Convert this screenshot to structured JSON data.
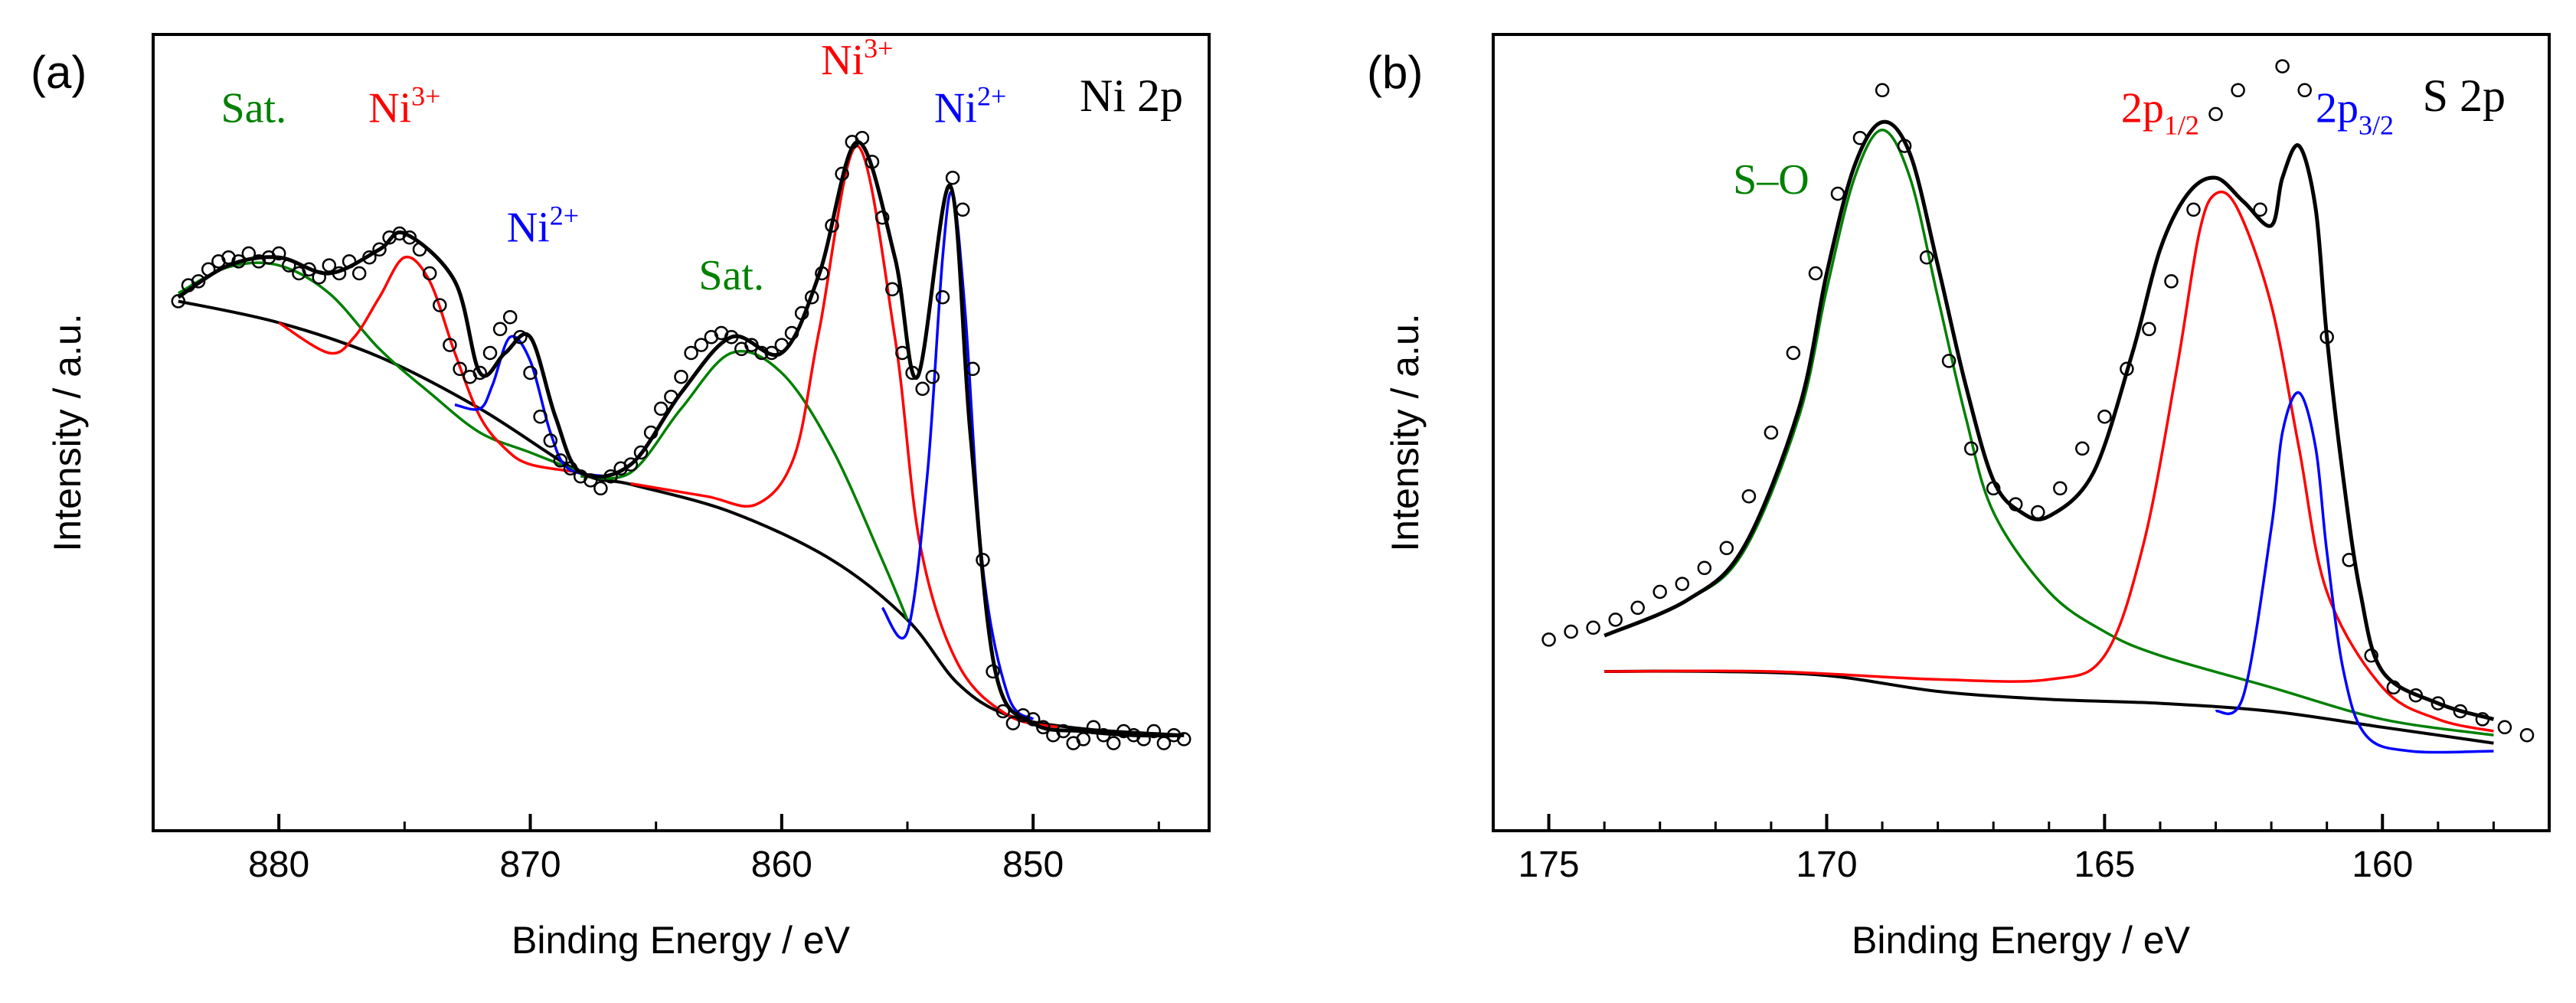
{
  "chart_data": [
    {
      "type": "line",
      "panel_label": "(a)",
      "title": "Ni 2p",
      "xlabel": "Binding Energy / eV",
      "ylabel": "Intensity / a.u.",
      "xlim": [
        885,
        843
      ],
      "ylim": [
        0.0,
        1.0
      ],
      "xticks": [
        "880",
        "870",
        "860",
        "850"
      ],
      "xtick_values": [
        880,
        870,
        860,
        850
      ],
      "colors": {
        "data": "#000000",
        "envelope": "#000000",
        "background": "#000000",
        "sat": "#008000",
        "ni3": "#ff0000",
        "ni2": "#0000ff"
      },
      "annotations": [
        {
          "name": "sat-label-1",
          "text": "Sat.",
          "color": "#008000",
          "x": 881,
          "y": 0.89
        },
        {
          "name": "ni3-label-1",
          "text": "Ni",
          "sup": "3+",
          "color": "#ff0000",
          "x": 875,
          "y": 0.89
        },
        {
          "name": "ni2-label-1",
          "text": "Ni",
          "sup": "2+",
          "color": "#0000ff",
          "x": 869.5,
          "y": 0.74
        },
        {
          "name": "sat-label-2",
          "text": "Sat.",
          "color": "#008000",
          "x": 862,
          "y": 0.68
        },
        {
          "name": "ni3-label-2",
          "text": "Ni",
          "sup": "3+",
          "color": "#ff0000",
          "x": 857,
          "y": 0.95
        },
        {
          "name": "ni2-label-2",
          "text": "Ni",
          "sup": "2+",
          "color": "#0000ff",
          "x": 852.5,
          "y": 0.89
        }
      ],
      "series": [
        {
          "name": "background",
          "role": "background",
          "color": "#000000",
          "x": [
            884,
            880,
            876,
            872,
            868,
            866,
            862,
            858,
            855,
            853,
            851,
            848,
            844
          ],
          "y": [
            0.665,
            0.638,
            0.595,
            0.53,
            0.45,
            0.435,
            0.4,
            0.34,
            0.265,
            0.185,
            0.145,
            0.128,
            0.12
          ]
        },
        {
          "name": "Sat. (880)",
          "role": "component",
          "color": "#008000",
          "x": [
            884,
            882,
            880,
            878,
            876,
            874,
            872,
            870,
            868
          ],
          "y": [
            0.675,
            0.708,
            0.71,
            0.675,
            0.605,
            0.55,
            0.5,
            0.475,
            0.45
          ]
        },
        {
          "name": "Ni3+ (875)",
          "role": "component",
          "color": "#ff0000",
          "x": [
            880,
            878,
            877,
            876,
            875,
            874,
            873,
            872,
            871,
            870,
            868
          ],
          "y": [
            0.638,
            0.6,
            0.62,
            0.67,
            0.72,
            0.69,
            0.6,
            0.52,
            0.48,
            0.46,
            0.45
          ]
        },
        {
          "name": "Ni2+ (871)",
          "role": "component",
          "color": "#0000ff",
          "x": [
            873,
            872,
            871.5,
            870.8,
            870,
            869.2,
            868.5,
            867
          ],
          "y": [
            0.535,
            0.53,
            0.56,
            0.62,
            0.59,
            0.5,
            0.455,
            0.445
          ]
        },
        {
          "name": "Sat. (862)",
          "role": "component",
          "color": "#008000",
          "x": [
            868,
            866,
            864,
            862,
            860,
            858,
            856,
            855
          ],
          "y": [
            0.445,
            0.45,
            0.53,
            0.6,
            0.575,
            0.48,
            0.34,
            0.265
          ]
        },
        {
          "name": "Ni3+ (857)",
          "role": "component",
          "color": "#ff0000",
          "x": [
            866,
            863,
            861,
            859.5,
            858.5,
            857,
            855.5,
            854.5,
            853,
            851,
            849
          ],
          "y": [
            0.436,
            0.42,
            0.41,
            0.47,
            0.63,
            0.86,
            0.62,
            0.36,
            0.21,
            0.145,
            0.13
          ]
        },
        {
          "name": "Ni2+ (853)",
          "role": "component",
          "color": "#0000ff",
          "x": [
            856,
            855,
            854.2,
            853.6,
            853.2,
            852.7,
            852,
            851,
            850
          ],
          "y": [
            0.28,
            0.25,
            0.45,
            0.72,
            0.8,
            0.65,
            0.33,
            0.17,
            0.14
          ]
        },
        {
          "name": "Envelope",
          "role": "envelope",
          "color": "#000000",
          "x": [
            884,
            882,
            880,
            878,
            876,
            875,
            873,
            872,
            871,
            870,
            869,
            868,
            866,
            864,
            862,
            860,
            858.5,
            857,
            855.5,
            854.6,
            853.3,
            852.5,
            851.5,
            850,
            848,
            846,
            844
          ],
          "y": [
            0.67,
            0.71,
            0.72,
            0.7,
            0.73,
            0.75,
            0.69,
            0.575,
            0.6,
            0.62,
            0.52,
            0.45,
            0.46,
            0.55,
            0.62,
            0.6,
            0.7,
            0.865,
            0.72,
            0.57,
            0.81,
            0.5,
            0.2,
            0.135,
            0.125,
            0.12,
            0.12
          ]
        },
        {
          "name": "Raw data",
          "role": "scatter",
          "color": "#000000",
          "x": [
            884,
            883.6,
            883.2,
            882.8,
            882.4,
            882,
            881.6,
            881.2,
            880.8,
            880.4,
            880,
            879.6,
            879.2,
            878.8,
            878.4,
            878,
            877.6,
            877.2,
            876.8,
            876.4,
            876,
            875.6,
            875.2,
            874.8,
            874.4,
            874,
            873.6,
            873.2,
            872.8,
            872.4,
            872,
            871.6,
            871.2,
            870.8,
            870.4,
            870,
            869.6,
            869.2,
            868.8,
            868.4,
            868,
            867.6,
            867.2,
            866.8,
            866.4,
            866,
            865.6,
            865.2,
            864.8,
            864.4,
            864,
            863.6,
            863.2,
            862.8,
            862.4,
            862,
            861.6,
            861.2,
            860.8,
            860.4,
            860,
            859.6,
            859.2,
            858.8,
            858.4,
            858,
            857.6,
            857.2,
            856.8,
            856.4,
            856,
            855.6,
            855.2,
            854.8,
            854.4,
            854,
            853.6,
            853.2,
            852.8,
            852.4,
            852,
            851.6,
            851.2,
            850.8,
            850.4,
            850,
            849.6,
            849.2,
            848.8,
            848.4,
            848,
            847.6,
            847.2,
            846.8,
            846.4,
            846,
            845.6,
            845.2,
            844.8,
            844.4,
            844
          ],
          "y": [
            0.665,
            0.685,
            0.69,
            0.705,
            0.715,
            0.72,
            0.715,
            0.725,
            0.715,
            0.72,
            0.725,
            0.71,
            0.7,
            0.705,
            0.695,
            0.71,
            0.7,
            0.715,
            0.7,
            0.72,
            0.73,
            0.745,
            0.75,
            0.745,
            0.73,
            0.7,
            0.66,
            0.61,
            0.58,
            0.57,
            0.575,
            0.6,
            0.63,
            0.645,
            0.62,
            0.575,
            0.52,
            0.49,
            0.465,
            0.455,
            0.445,
            0.44,
            0.43,
            0.445,
            0.455,
            0.46,
            0.475,
            0.5,
            0.53,
            0.545,
            0.57,
            0.6,
            0.61,
            0.62,
            0.625,
            0.62,
            0.605,
            0.61,
            0.6,
            0.6,
            0.61,
            0.625,
            0.65,
            0.67,
            0.7,
            0.76,
            0.825,
            0.865,
            0.87,
            0.84,
            0.77,
            0.68,
            0.6,
            0.575,
            0.555,
            0.57,
            0.67,
            0.82,
            0.78,
            0.58,
            0.34,
            0.2,
            0.15,
            0.135,
            0.145,
            0.14,
            0.13,
            0.12,
            0.125,
            0.11,
            0.115,
            0.13,
            0.12,
            0.11,
            0.125,
            0.12,
            0.115,
            0.125,
            0.11,
            0.12,
            0.115
          ]
        }
      ]
    },
    {
      "type": "line",
      "panel_label": "(b)",
      "title": "S 2p",
      "xlabel": "Binding Energy / eV",
      "ylabel": "Intensity / a.u.",
      "xlim": [
        176,
        157
      ],
      "ylim": [
        0.0,
        1.0
      ],
      "xticks": [
        "175",
        "170",
        "165",
        "160"
      ],
      "xtick_values": [
        175,
        170,
        165,
        160
      ],
      "colors": {
        "data": "#000000",
        "envelope": "#000000",
        "background": "#000000",
        "so": "#008000",
        "p12": "#ff0000",
        "p32": "#0000ff"
      },
      "annotations": [
        {
          "name": "so-label",
          "text": "S–O",
          "color": "#008000",
          "x": 171,
          "y": 0.8
        },
        {
          "name": "p12-label",
          "text": "2p",
          "sub": "1/2",
          "color": "#ff0000",
          "x": 164,
          "y": 0.89
        },
        {
          "name": "p32-label",
          "text": "2p",
          "sub": "3/2",
          "color": "#0000ff",
          "x": 160.5,
          "y": 0.89
        }
      ],
      "series": [
        {
          "name": "background",
          "role": "background",
          "color": "#000000",
          "x": [
            174,
            172,
            170,
            168,
            166,
            164,
            162,
            160,
            158
          ],
          "y": [
            0.2,
            0.2,
            0.195,
            0.175,
            0.165,
            0.16,
            0.15,
            0.13,
            0.11
          ]
        },
        {
          "name": "S–O",
          "role": "component",
          "color": "#008000",
          "x": [
            174,
            172.5,
            171.5,
            170.5,
            170,
            169.5,
            169,
            168.5,
            168,
            167.5,
            167,
            166,
            165,
            164,
            162,
            160,
            158
          ],
          "y": [
            0.245,
            0.29,
            0.35,
            0.52,
            0.68,
            0.82,
            0.88,
            0.82,
            0.67,
            0.52,
            0.4,
            0.3,
            0.25,
            0.22,
            0.18,
            0.14,
            0.12
          ]
        },
        {
          "name": "2p1/2",
          "role": "component",
          "color": "#ff0000",
          "x": [
            174,
            171,
            168,
            166,
            165,
            164.3,
            163.7,
            163.3,
            163,
            162.6,
            162,
            161.5,
            161,
            160,
            159,
            158
          ],
          "y": [
            0.2,
            0.2,
            0.19,
            0.19,
            0.22,
            0.36,
            0.58,
            0.75,
            0.8,
            0.78,
            0.66,
            0.48,
            0.3,
            0.18,
            0.14,
            0.125
          ]
        },
        {
          "name": "2p3/2",
          "role": "component",
          "color": "#0000ff",
          "x": [
            163,
            162.5,
            162,
            161.8,
            161.5,
            161.2,
            161,
            160.7,
            160.3,
            159.5,
            158
          ],
          "y": [
            0.15,
            0.17,
            0.38,
            0.5,
            0.55,
            0.48,
            0.35,
            0.2,
            0.12,
            0.1,
            0.1
          ]
        },
        {
          "name": "Envelope",
          "role": "envelope",
          "color": "#000000",
          "x": [
            174,
            172.5,
            171.5,
            170.5,
            170,
            169.5,
            169,
            168.5,
            168,
            167.5,
            167,
            166.5,
            166,
            165.2,
            164.5,
            164,
            163.5,
            163,
            162.5,
            162,
            161.8,
            161.5,
            161.2,
            161,
            160.7,
            160.4,
            160,
            159,
            158
          ],
          "y": [
            0.245,
            0.29,
            0.355,
            0.53,
            0.7,
            0.835,
            0.89,
            0.85,
            0.71,
            0.56,
            0.44,
            0.4,
            0.395,
            0.45,
            0.6,
            0.73,
            0.8,
            0.82,
            0.79,
            0.76,
            0.82,
            0.86,
            0.78,
            0.62,
            0.44,
            0.3,
            0.2,
            0.16,
            0.14
          ]
        },
        {
          "name": "Raw data",
          "role": "scatter",
          "color": "#000000",
          "x": [
            175,
            174.6,
            174.2,
            173.8,
            173.4,
            173,
            172.6,
            172.2,
            171.8,
            171.4,
            171,
            170.6,
            170.2,
            169.8,
            169.4,
            169,
            168.6,
            168.2,
            167.8,
            167.4,
            167,
            166.6,
            166.2,
            165.8,
            165.4,
            165,
            164.6,
            164.2,
            163.8,
            163.4,
            163,
            162.6,
            162.2,
            161.8,
            161.4,
            161,
            160.6,
            160.2,
            159.8,
            159.4,
            159,
            158.6,
            158.2,
            157.8,
            157.4
          ],
          "y": [
            0.24,
            0.25,
            0.255,
            0.265,
            0.28,
            0.3,
            0.31,
            0.33,
            0.355,
            0.42,
            0.5,
            0.6,
            0.7,
            0.8,
            0.87,
            0.93,
            0.86,
            0.72,
            0.59,
            0.48,
            0.43,
            0.41,
            0.4,
            0.43,
            0.48,
            0.52,
            0.58,
            0.63,
            0.69,
            0.78,
            0.9,
            0.93,
            0.78,
            0.96,
            0.93,
            0.62,
            0.34,
            0.22,
            0.18,
            0.17,
            0.16,
            0.15,
            0.14,
            0.13,
            0.12
          ]
        }
      ]
    }
  ]
}
